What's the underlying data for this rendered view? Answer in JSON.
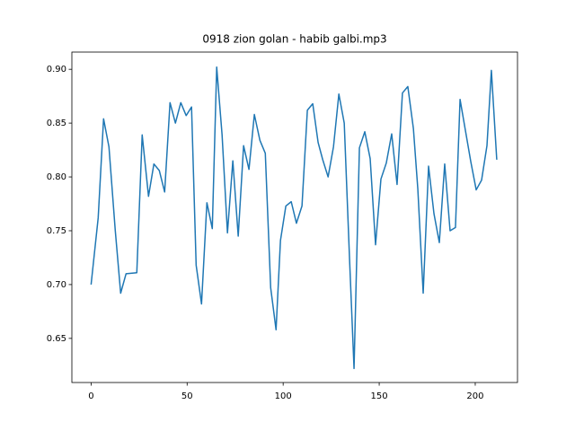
{
  "chart_data": {
    "type": "line",
    "title": "0918 zion golan - habib galbi.mp3",
    "x": [
      0,
      3.7,
      6.5,
      9.3,
      12.6,
      15.4,
      18.2,
      23.8,
      26.6,
      29.9,
      32.7,
      35.5,
      38.3,
      41.1,
      43.9,
      46.7,
      49.5,
      52.3,
      54.7,
      57.5,
      60.3,
      63.1,
      65.4,
      68.2,
      71.0,
      73.8,
      76.6,
      79.4,
      82.2,
      85.0,
      87.9,
      90.7,
      93.5,
      96.3,
      98.6,
      101.4,
      104.2,
      106.9,
      109.8,
      112.6,
      115.4,
      118.2,
      120.6,
      123.4,
      126.2,
      129.0,
      131.8,
      134.6,
      136.9,
      139.7,
      142.5,
      145.3,
      148.1,
      150.9,
      153.7,
      156.5,
      159.3,
      162.1,
      164.9,
      167.8,
      170.1,
      172.9,
      175.7,
      178.5,
      181.3,
      184.1,
      186.9,
      189.7,
      192.1,
      194.9,
      197.7,
      200.5,
      203.3,
      206.1,
      208.4,
      211.2
    ],
    "series": [
      {
        "color": "#1f77b4",
        "values": [
          0.7,
          0.762,
          0.854,
          0.828,
          0.75,
          0.692,
          0.71,
          0.711,
          0.839,
          0.782,
          0.812,
          0.806,
          0.786,
          0.869,
          0.85,
          0.869,
          0.857,
          0.865,
          0.718,
          0.682,
          0.776,
          0.752,
          0.902,
          0.839,
          0.748,
          0.815,
          0.745,
          0.829,
          0.807,
          0.858,
          0.834,
          0.822,
          0.697,
          0.658,
          0.741,
          0.773,
          0.777,
          0.757,
          0.773,
          0.862,
          0.868,
          0.832,
          0.816,
          0.8,
          0.828,
          0.877,
          0.85,
          0.722,
          0.622,
          0.827,
          0.842,
          0.817,
          0.737,
          0.798,
          0.813,
          0.84,
          0.793,
          0.878,
          0.884,
          0.845,
          0.789,
          0.692,
          0.81,
          0.766,
          0.739,
          0.812,
          0.75,
          0.753,
          0.872,
          0.843,
          0.814,
          0.788,
          0.797,
          0.829,
          0.899,
          0.816
        ]
      }
    ],
    "xlim": [
      -10,
      222
    ],
    "xticks": [
      0,
      50,
      100,
      150,
      200
    ],
    "ylim": [
      0.609,
      0.916
    ],
    "yticks": [
      0.65,
      {
        "value": 0.7,
        "label": "0.70"
      },
      0.75,
      {
        "value": 0.8,
        "label": "0.80"
      },
      0.85,
      {
        "value": 0.9,
        "label": "0.90"
      }
    ]
  }
}
